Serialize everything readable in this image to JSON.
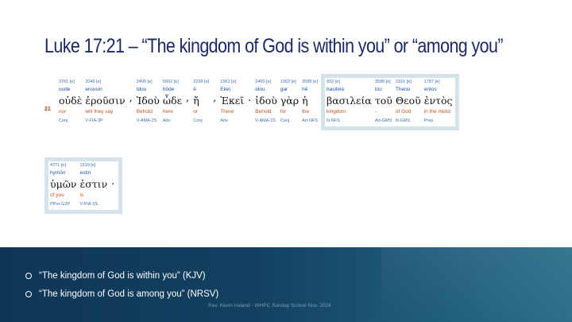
{
  "slide": {
    "title": "Luke 17:21 – “The kingdom of God is within you” or “among you”",
    "verse_number": "21",
    "row1_words": [
      {
        "strongs": "3761 [e]",
        "translit": "oude",
        "greek": "οὐδὲ",
        "english": "nor",
        "parse": "Conj"
      },
      {
        "strongs": "2046 [e]",
        "translit": "erousin",
        "greek": "ἐροῦσιν",
        "english": "will they say",
        "parse": "V-FIA-3P"
      },
      {
        "strongs": "2400 [e]",
        "translit": "Idou",
        "greek": "Ἰδοὺ",
        "english": "Behold",
        "parse": "V-AMA-2S"
      },
      {
        "strongs": "5602 [e]",
        "translit": "hōde",
        "greek": "ὧδε",
        "english": "here",
        "parse": "Adv"
      },
      {
        "strongs": "2228 [e]",
        "translit": "ē",
        "greek": "ἤ",
        "english": "or",
        "parse": "Conj"
      },
      {
        "strongs": "1563 [e]",
        "translit": "Ekei",
        "greek": "Ἐκεῖ",
        "english": "There",
        "parse": "Adv"
      },
      {
        "strongs": "2400 [e]",
        "translit": "idou",
        "greek": "ἰδοὺ",
        "english": "Behold",
        "parse": "V-AMA-2S"
      },
      {
        "strongs": "1063 [e]",
        "translit": "gar",
        "greek": "γὰρ",
        "english": "for",
        "parse": "Conj"
      },
      {
        "strongs": "3588 [e]",
        "translit": "hē",
        "greek": "ἡ",
        "english": "the",
        "parse": "Art-NFS"
      }
    ],
    "row1_highlight_words": [
      {
        "strongs": "932 [e]",
        "translit": "basileia",
        "greek": "βασιλεία",
        "english": "kingdom",
        "parse": "N-NFS"
      },
      {
        "strongs": "3588 [e]",
        "translit": "tou",
        "greek": "τοῦ",
        "english": "-",
        "parse": "Art-GMS"
      },
      {
        "strongs": "2316 [e]",
        "translit": "Theou",
        "greek": "Θεοῦ",
        "english": "of God",
        "parse": "N-GMS"
      },
      {
        "strongs": "1787 [e]",
        "translit": "entos",
        "greek": "ἐντὸς",
        "english": "in the midst",
        "parse": "Prep"
      }
    ],
    "row2_words": [
      {
        "strongs": "4771 [e]",
        "translit": "hymōn",
        "greek": "ὑμῶν",
        "english": "of you",
        "parse": "PPro-G2P"
      },
      {
        "strongs": "1510 [e]",
        "translit": "estin",
        "greek": "ἐστιν",
        "english": "is",
        "parse": "V-PIA-3S"
      }
    ],
    "punctuation": {
      "comma": ",",
      "period": "."
    },
    "bullets": [
      "“The kingdom of God is within you” (KJV)",
      "“The kingdom of God is among you” (NRSV)"
    ],
    "credit": "Rev. Kevin Ireland - WHPC Sunday School Nov. 2024",
    "colors": {
      "title": "#1b2a66",
      "strongs_blue": "#3f6fa8",
      "english_orange": "#c0551a",
      "highlight_border": "#d5e3ea",
      "footer_dark": "#0f3655"
    }
  }
}
